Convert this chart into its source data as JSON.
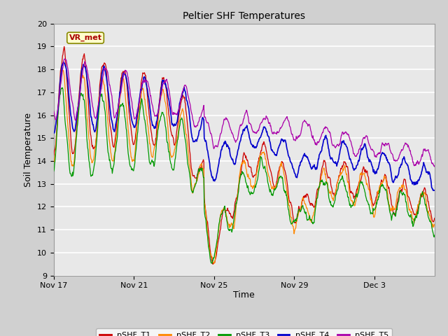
{
  "title": "Peltier SHF Temperatures",
  "xlabel": "Time",
  "ylabel": "Soil Temperature",
  "ylim": [
    9.0,
    20.0
  ],
  "yticks": [
    9.0,
    10.0,
    11.0,
    12.0,
    13.0,
    14.0,
    15.0,
    16.0,
    17.0,
    18.0,
    19.0,
    20.0
  ],
  "line_colors": {
    "T1": "#cc0000",
    "T2": "#ff8800",
    "T3": "#009900",
    "T4": "#0000cc",
    "T5": "#aa00aa"
  },
  "legend_labels": [
    "pSHF_T1",
    "pSHF_T2",
    "pSHF_T3",
    "pSHF_T4",
    "pSHF_T5"
  ],
  "annotation_text": "VR_met",
  "tick_label_dates": [
    "Nov 17",
    "Nov 21",
    "Nov 25",
    "Nov 29",
    "Dec 3"
  ],
  "tick_positions": [
    0,
    4,
    8,
    12,
    16
  ],
  "n_days": 19,
  "n_per_day": 48
}
